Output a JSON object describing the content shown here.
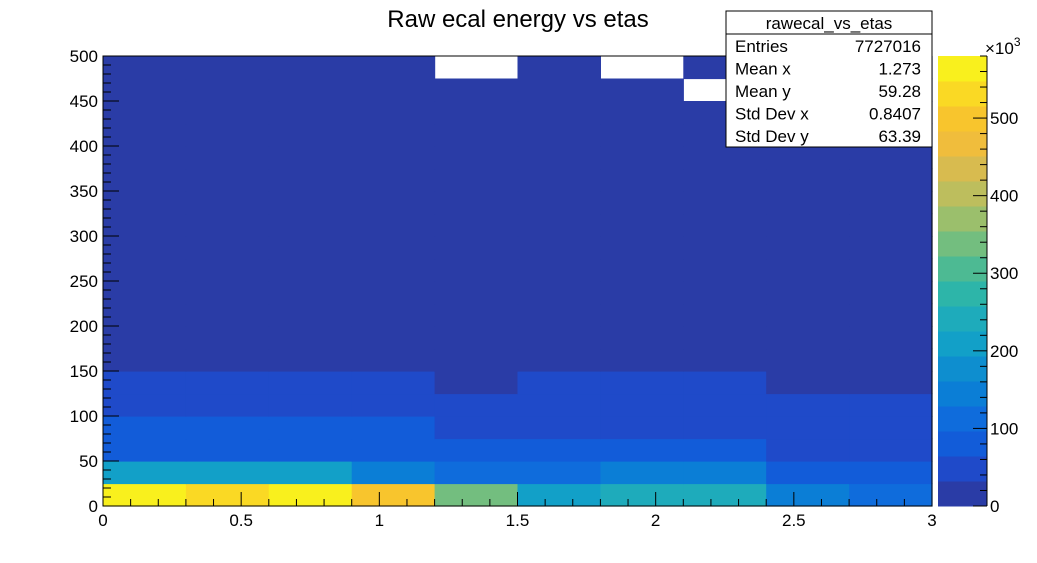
{
  "chart_data": {
    "type": "heatmap",
    "title": "Raw ecal energy vs etas",
    "xlim": [
      0,
      3
    ],
    "ylim": [
      0,
      500
    ],
    "x_bin_edges": [
      0,
      0.3,
      0.6,
      0.9,
      1.2,
      1.5,
      1.8,
      2.1,
      2.4,
      2.7,
      3.0
    ],
    "y_bin_edges": [
      0,
      25,
      50,
      75,
      100,
      125,
      150,
      175,
      200,
      225,
      250,
      275,
      300,
      325,
      350,
      375,
      400,
      425,
      450,
      475,
      500
    ],
    "z_unit_multiplier_label": "×10",
    "z_unit_multiplier_exp": "3",
    "z_range": [
      0,
      580
    ],
    "z_values_x1000": [
      [
        570,
        540,
        570,
        490,
        330,
        210,
        240,
        230,
        130,
        100
      ],
      [
        200,
        200,
        200,
        150,
        120,
        120,
        150,
        150,
        75,
        75
      ],
      [
        95,
        95,
        95,
        80,
        75,
        75,
        95,
        95,
        50,
        50
      ],
      [
        65,
        65,
        65,
        65,
        60,
        60,
        60,
        60,
        45,
        45
      ],
      [
        45,
        45,
        45,
        45,
        35,
        45,
        45,
        45,
        35,
        35
      ],
      [
        40,
        35,
        35,
        35,
        25,
        35,
        35,
        35,
        30,
        25
      ],
      [
        30,
        5,
        5,
        5,
        5,
        5,
        5,
        5,
        5,
        5
      ],
      [
        5,
        5,
        5,
        5,
        5,
        5,
        5,
        5,
        5,
        5
      ],
      [
        5,
        5,
        5,
        5,
        5,
        5,
        5,
        5,
        5,
        5
      ],
      [
        5,
        5,
        5,
        5,
        5,
        5,
        5,
        5,
        5,
        5
      ],
      [
        5,
        5,
        5,
        5,
        5,
        5,
        5,
        5,
        5,
        5
      ],
      [
        5,
        5,
        5,
        5,
        5,
        5,
        5,
        5,
        5,
        5
      ],
      [
        5,
        5,
        5,
        5,
        5,
        5,
        5,
        5,
        5,
        5
      ],
      [
        5,
        5,
        5,
        5,
        5,
        5,
        5,
        5,
        5,
        5
      ],
      [
        5,
        5,
        5,
        5,
        5,
        5,
        5,
        5,
        5,
        5
      ],
      [
        5,
        5,
        5,
        5,
        5,
        5,
        5,
        5,
        5,
        5
      ],
      [
        5,
        5,
        5,
        5,
        5,
        5,
        5,
        5,
        5,
        5
      ],
      [
        5,
        5,
        5,
        5,
        5,
        5,
        5,
        5,
        5,
        5
      ],
      [
        5,
        5,
        5,
        5,
        5,
        5,
        5,
        null,
        5,
        5
      ],
      [
        5,
        5,
        5,
        5,
        null,
        5,
        null,
        5,
        5,
        5
      ]
    ],
    "x_ticks": [
      0,
      0.5,
      1,
      1.5,
      2,
      2.5,
      3
    ],
    "x_tick_labels": [
      "0",
      "0.5",
      "1",
      "1.5",
      "2",
      "2.5",
      "3"
    ],
    "y_ticks": [
      0,
      50,
      100,
      150,
      200,
      250,
      300,
      350,
      400,
      450,
      500
    ],
    "y_tick_labels": [
      "0",
      "50",
      "100",
      "150",
      "200",
      "250",
      "300",
      "350",
      "400",
      "450",
      "500"
    ],
    "z_ticks": [
      0,
      100,
      200,
      300,
      400,
      500
    ],
    "z_tick_labels": [
      "0",
      "100",
      "200",
      "300",
      "400",
      "500"
    ],
    "palette": [
      "#2a3ca6",
      "#1f4ac9",
      "#125cd9",
      "#0f6cdc",
      "#0b7ed6",
      "#0e8ecf",
      "#12a0c8",
      "#1eabbb",
      "#2db5a9",
      "#4dba93",
      "#73be7f",
      "#9bbf6c",
      "#bdbe5d",
      "#d8bb4f",
      "#f0bd3c",
      "#f8c52d",
      "#fad924",
      "#f9f01d"
    ],
    "stats_box": {
      "name": "rawecal_vs_etas",
      "rows": [
        {
          "label": "Entries",
          "value": "7727016"
        },
        {
          "label": "Mean x",
          "value": "1.273"
        },
        {
          "label": "Mean y",
          "value": "59.28"
        },
        {
          "label": "Std Dev x",
          "value": "0.8407"
        },
        {
          "label": "Std Dev y",
          "value": "63.39"
        }
      ]
    }
  }
}
